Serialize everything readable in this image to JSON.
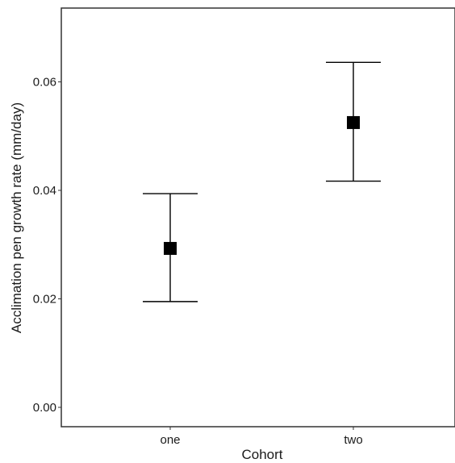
{
  "chart_data": {
    "type": "scatter",
    "categories": [
      "one",
      "two"
    ],
    "series": [
      {
        "values": [
          0.0293,
          0.0525
        ],
        "error_lower": [
          0.0195,
          0.0417
        ],
        "error_upper": [
          0.0394,
          0.0636
        ]
      }
    ],
    "xlabel": "Cohort",
    "ylabel": "Acclimation pen growth rate (mm/day)",
    "ylim": [
      -0.001,
      0.0735
    ],
    "yticks": [
      0.0,
      0.02,
      0.04,
      0.06
    ],
    "ytick_labels": [
      "0.00",
      "0.02",
      "0.04",
      "0.06"
    ],
    "grid": false,
    "marker": "square",
    "colors": {
      "marker": "#000000",
      "errorbar": "#000000",
      "panel_border": "#333333"
    }
  }
}
